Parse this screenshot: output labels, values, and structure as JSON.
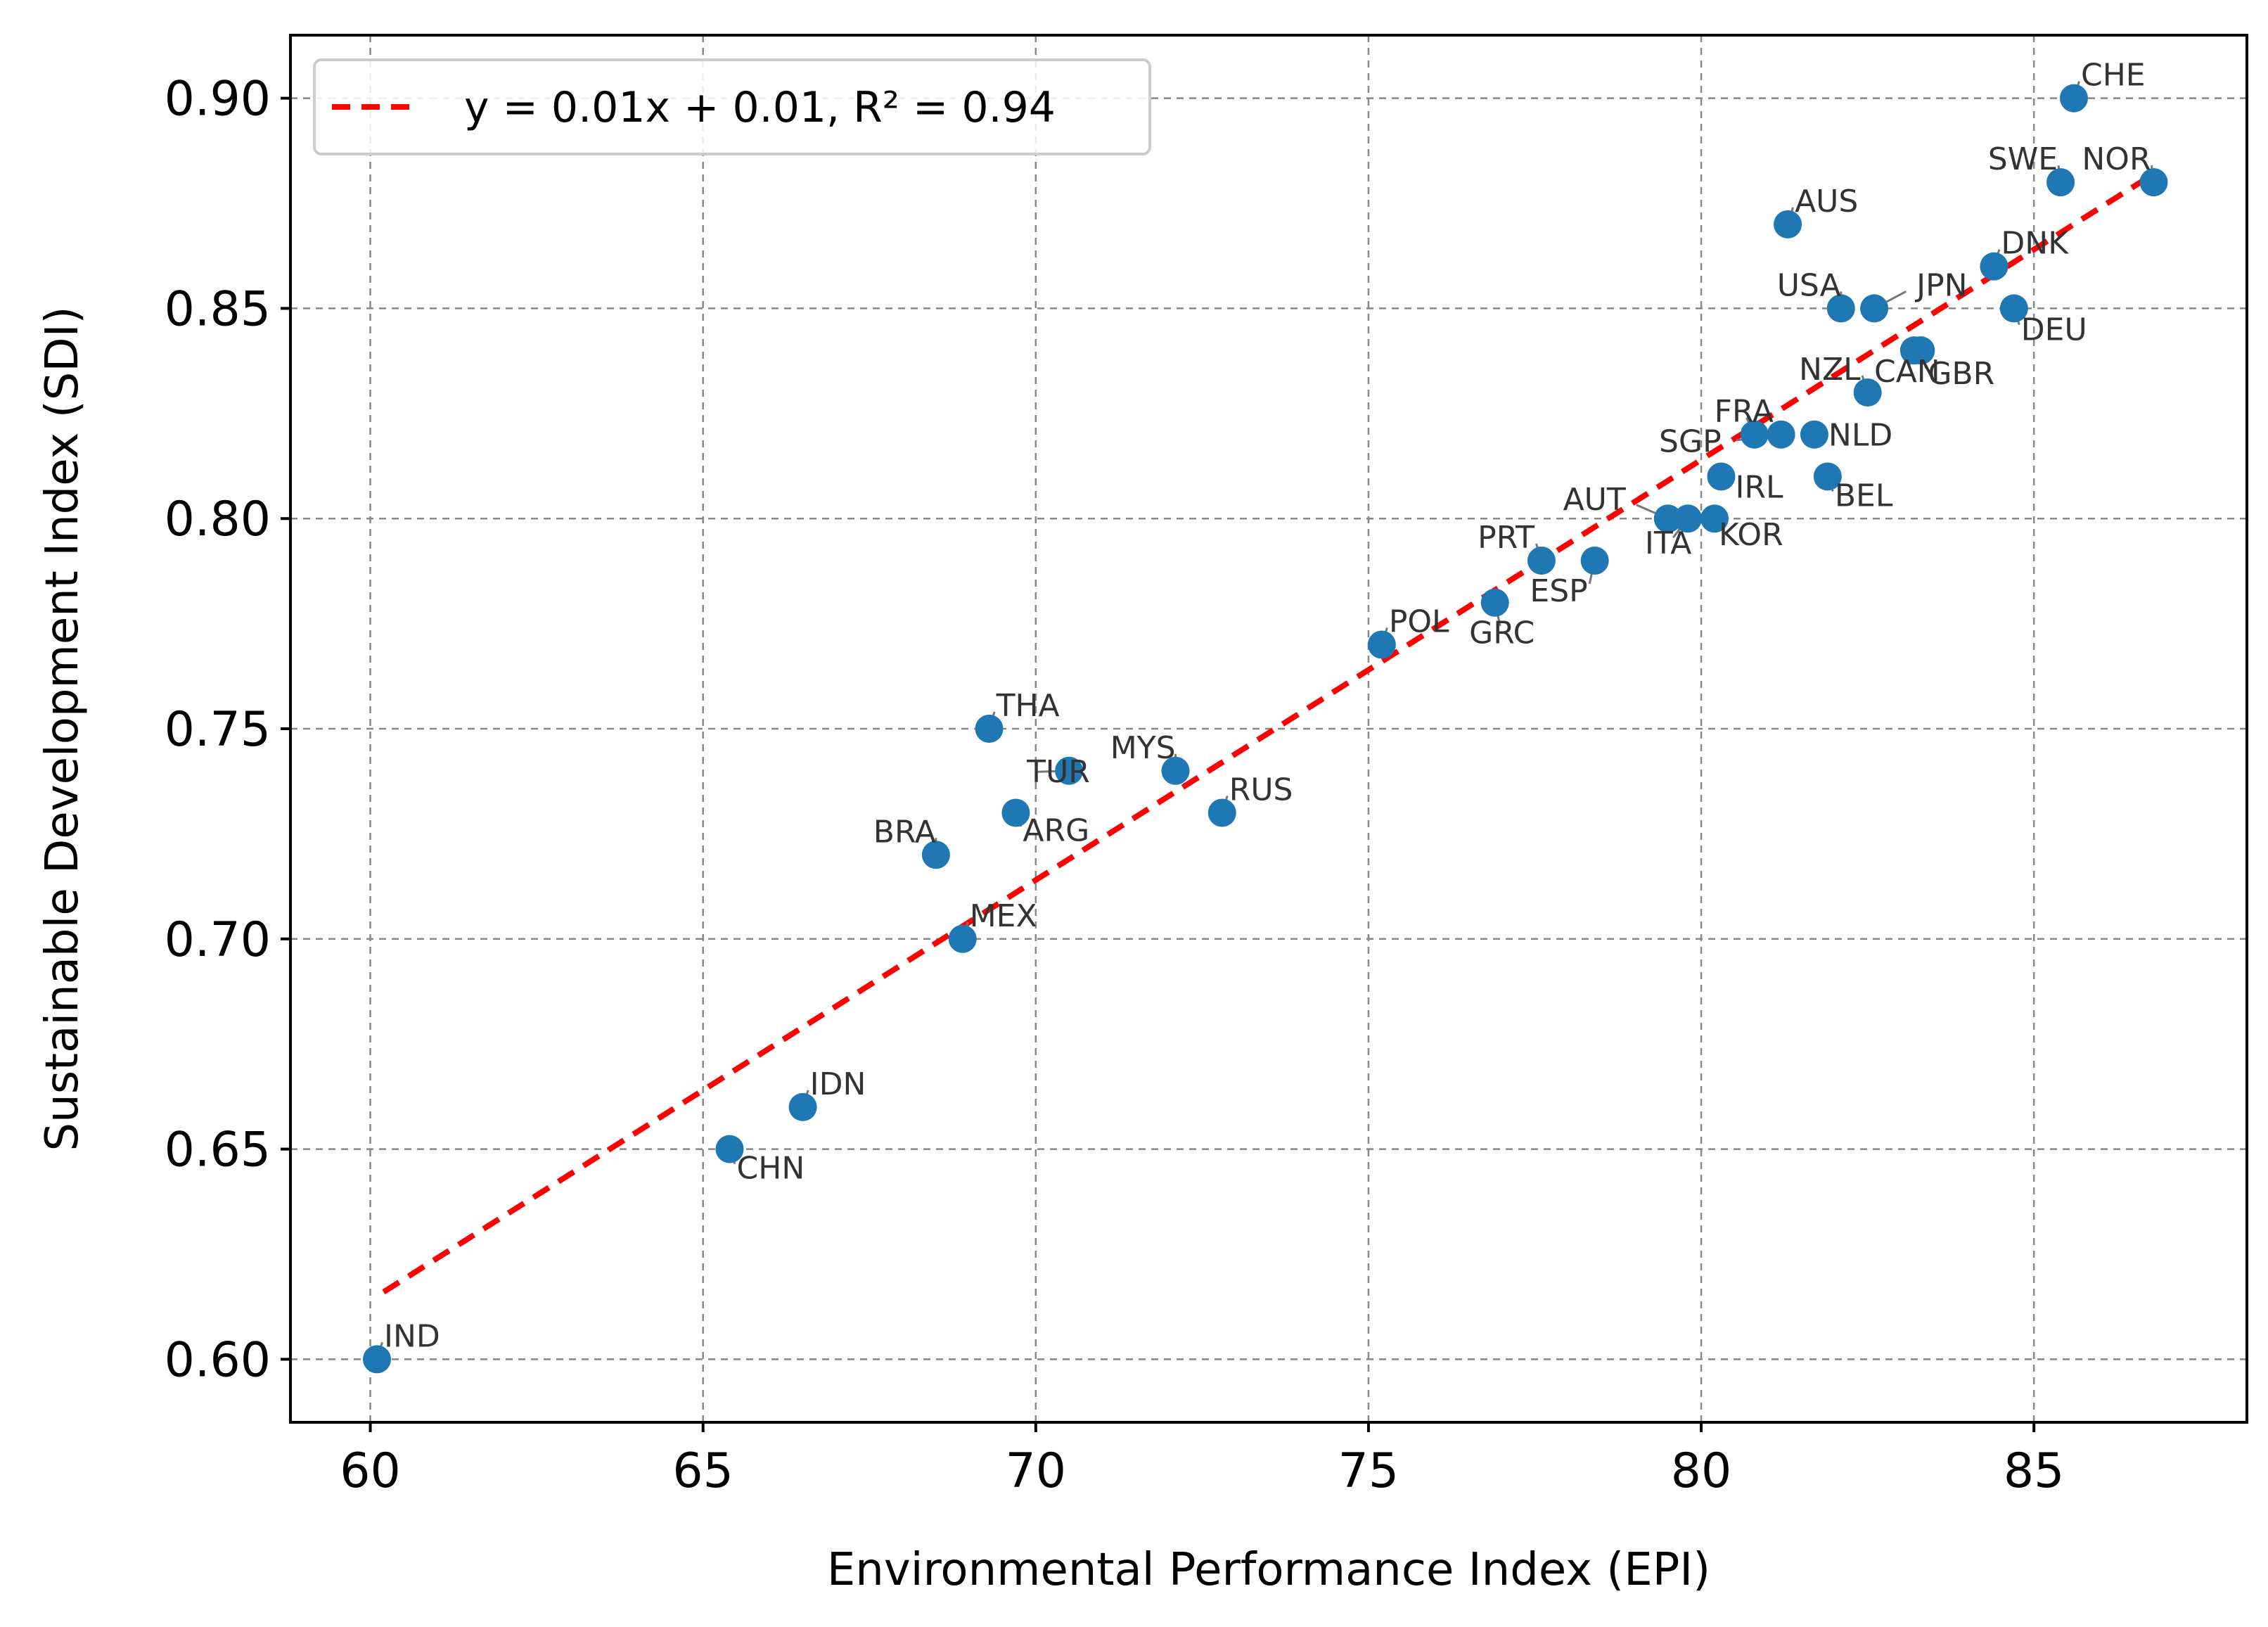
{
  "chart_data": {
    "type": "scatter",
    "title": "",
    "xlabel": "Environmental Performance Index (EPI)",
    "ylabel": "Sustainable Development Index (SDI)",
    "xlim": [
      58.8,
      88.2
    ],
    "ylim": [
      0.585,
      0.915
    ],
    "xticks": [
      60,
      65,
      70,
      75,
      80,
      85
    ],
    "yticks": [
      0.6,
      0.65,
      0.7,
      0.75,
      0.8,
      0.85,
      0.9
    ],
    "grid": true,
    "legend_position": "top-left",
    "point_color": "#1f77b4",
    "fit_color": "#ff0000",
    "fit_line": {
      "label": "y = 0.01x + 0.01, R² = 0.94",
      "x": [
        60.2,
        86.8
      ],
      "y": [
        0.616,
        0.882
      ]
    },
    "points": [
      {
        "label": "CHE",
        "x": 85.6,
        "y": 0.9
      },
      {
        "label": "NOR",
        "x": 86.8,
        "y": 0.88
      },
      {
        "label": "SWE",
        "x": 85.4,
        "y": 0.88
      },
      {
        "label": "AUS",
        "x": 81.3,
        "y": 0.87
      },
      {
        "label": "DNK",
        "x": 84.4,
        "y": 0.86
      },
      {
        "label": "USA",
        "x": 82.1,
        "y": 0.85
      },
      {
        "label": "JPN",
        "x": 82.6,
        "y": 0.85
      },
      {
        "label": "DEU",
        "x": 84.7,
        "y": 0.85
      },
      {
        "label": "CAN",
        "x": 83.2,
        "y": 0.84
      },
      {
        "label": "GBR",
        "x": 83.3,
        "y": 0.84
      },
      {
        "label": "NZL",
        "x": 82.5,
        "y": 0.83
      },
      {
        "label": "FRA",
        "x": 80.8,
        "y": 0.82
      },
      {
        "label": "SGP",
        "x": 81.2,
        "y": 0.82
      },
      {
        "label": "NLD",
        "x": 81.7,
        "y": 0.82
      },
      {
        "label": "IRL",
        "x": 80.3,
        "y": 0.81
      },
      {
        "label": "BEL",
        "x": 81.9,
        "y": 0.81
      },
      {
        "label": "AUT",
        "x": 79.5,
        "y": 0.8
      },
      {
        "label": "ITA",
        "x": 79.8,
        "y": 0.8
      },
      {
        "label": "KOR",
        "x": 80.2,
        "y": 0.8
      },
      {
        "label": "PRT",
        "x": 77.6,
        "y": 0.79
      },
      {
        "label": "ESP",
        "x": 78.4,
        "y": 0.79
      },
      {
        "label": "GRC",
        "x": 76.9,
        "y": 0.78
      },
      {
        "label": "POL",
        "x": 75.2,
        "y": 0.77
      },
      {
        "label": "THA",
        "x": 69.3,
        "y": 0.75
      },
      {
        "label": "TUR",
        "x": 70.5,
        "y": 0.74
      },
      {
        "label": "MYS",
        "x": 72.1,
        "y": 0.74
      },
      {
        "label": "ARG",
        "x": 69.7,
        "y": 0.73
      },
      {
        "label": "RUS",
        "x": 72.8,
        "y": 0.73
      },
      {
        "label": "BRA",
        "x": 68.5,
        "y": 0.72
      },
      {
        "label": "MEX",
        "x": 68.9,
        "y": 0.7
      },
      {
        "label": "IDN",
        "x": 66.5,
        "y": 0.66
      },
      {
        "label": "CHN",
        "x": 65.4,
        "y": 0.65
      },
      {
        "label": "IND",
        "x": 60.1,
        "y": 0.6
      }
    ]
  }
}
